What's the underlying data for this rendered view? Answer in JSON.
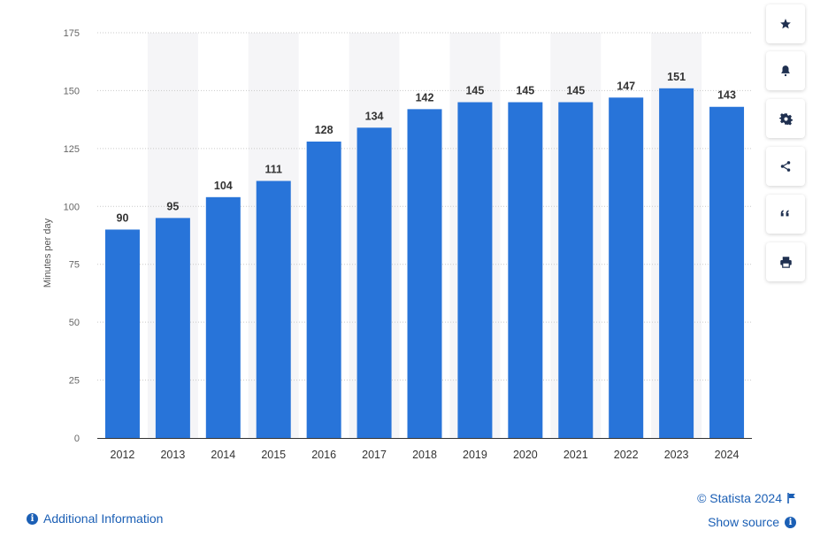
{
  "chart_data": {
    "type": "bar",
    "categories": [
      "2012",
      "2013",
      "2014",
      "2015",
      "2016",
      "2017",
      "2018",
      "2019",
      "2020",
      "2021",
      "2022",
      "2023",
      "2024"
    ],
    "values": [
      90,
      95,
      104,
      111,
      128,
      134,
      142,
      145,
      145,
      145,
      147,
      151,
      143
    ],
    "title": "",
    "xlabel": "",
    "ylabel": "Minutes per day",
    "ylim": [
      0,
      175
    ],
    "yticks": [
      0,
      25,
      50,
      75,
      100,
      125,
      150,
      175
    ],
    "grid": true,
    "data_labels": true,
    "bar_color": "#2874d9"
  },
  "sidebar": {
    "buttons": [
      {
        "name": "favorite-button",
        "icon": "star-icon"
      },
      {
        "name": "notification-button",
        "icon": "bell-icon"
      },
      {
        "name": "settings-button",
        "icon": "gear-icon"
      },
      {
        "name": "share-button",
        "icon": "share-icon"
      },
      {
        "name": "cite-button",
        "icon": "quote-icon"
      },
      {
        "name": "print-button",
        "icon": "print-icon"
      }
    ]
  },
  "footer": {
    "copyright": "© Statista 2024",
    "show_source": "Show source",
    "additional_info": "Additional Information"
  },
  "colors": {
    "accent": "#1b5fb5",
    "bar": "#2874d9",
    "band": "#f5f5f7"
  }
}
